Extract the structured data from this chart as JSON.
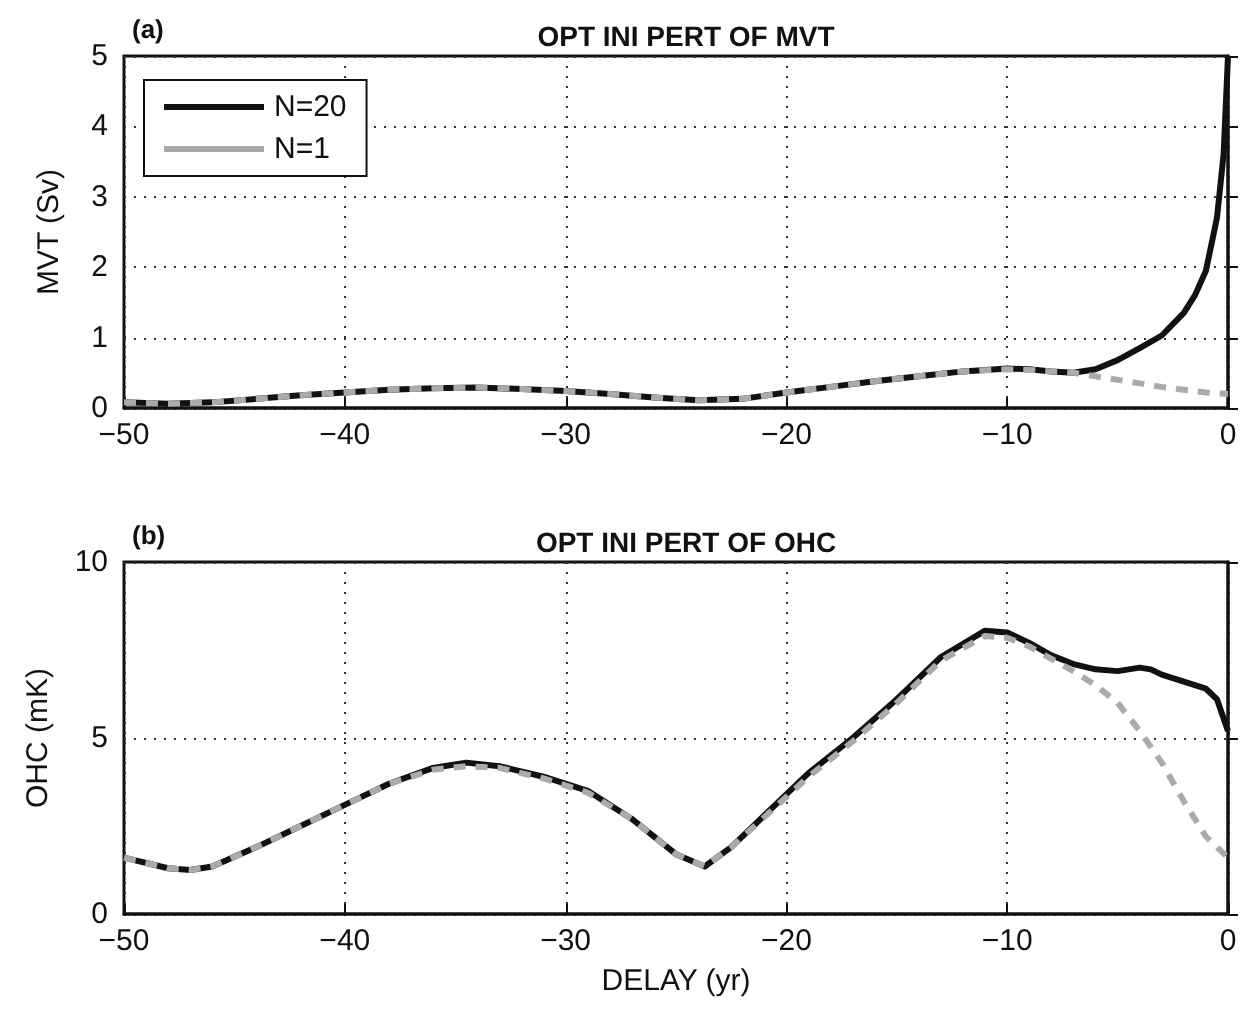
{
  "chart_data": [
    {
      "type": "line",
      "title": "OPT INI PERT OF MVT",
      "ylabel": "MVT (Sv)",
      "annotations": [
        "(a)"
      ],
      "xlim": [
        -50,
        0
      ],
      "xticks": [
        -50,
        -40,
        -30,
        -20,
        -10,
        0
      ],
      "ylim": [
        0,
        5
      ],
      "yticks": [
        0,
        1,
        2,
        3,
        4,
        5
      ],
      "grid": true,
      "legend": "top left",
      "marker": "none",
      "series": [
        {
          "name": "N=20",
          "color": "#111111",
          "line_style": "solid",
          "x": [
            -50,
            -48,
            -46,
            -44,
            -42,
            -40,
            -38,
            -36,
            -34,
            -32,
            -30,
            -28,
            -26,
            -24,
            -22,
            -20,
            -18,
            -16,
            -14,
            -12,
            -10,
            -9,
            -8,
            -7,
            -6,
            -5,
            -4,
            -3,
            -2,
            -1.5,
            -1,
            -0.5,
            -0.2,
            0
          ],
          "values": [
            0.08,
            0.06,
            0.08,
            0.13,
            0.18,
            0.22,
            0.26,
            0.28,
            0.29,
            0.27,
            0.24,
            0.2,
            0.15,
            0.11,
            0.13,
            0.22,
            0.3,
            0.38,
            0.45,
            0.52,
            0.56,
            0.55,
            0.52,
            0.5,
            0.55,
            0.68,
            0.85,
            1.03,
            1.35,
            1.6,
            1.95,
            2.7,
            3.6,
            5
          ]
        },
        {
          "name": "N=1",
          "color": "#aaaaaa",
          "line_style": "dashed",
          "x": [
            -50,
            -48,
            -46,
            -44,
            -42,
            -40,
            -38,
            -36,
            -34,
            -32,
            -30,
            -28,
            -26,
            -24,
            -22,
            -20,
            -18,
            -16,
            -14,
            -12,
            -10,
            -9,
            -8,
            -7,
            -6,
            -5,
            -4,
            -3,
            -2,
            -1,
            0
          ],
          "values": [
            0.08,
            0.06,
            0.08,
            0.13,
            0.18,
            0.22,
            0.26,
            0.28,
            0.29,
            0.27,
            0.24,
            0.2,
            0.15,
            0.11,
            0.13,
            0.22,
            0.3,
            0.38,
            0.45,
            0.52,
            0.55,
            0.54,
            0.52,
            0.5,
            0.45,
            0.4,
            0.35,
            0.3,
            0.26,
            0.22,
            0.2
          ]
        }
      ]
    },
    {
      "type": "line",
      "title": "OPT INI PERT OF OHC",
      "xlabel": "DELAY (yr)",
      "ylabel": "OHC (mK)",
      "annotations": [
        "(b)"
      ],
      "xlim": [
        -50,
        0
      ],
      "xticks": [
        -50,
        -40,
        -30,
        -20,
        -10,
        0
      ],
      "ylim": [
        0,
        10
      ],
      "yticks": [
        0,
        5,
        10
      ],
      "grid": true,
      "marker": "none",
      "series": [
        {
          "color": "#111111",
          "line_style": "solid",
          "x": [
            -50,
            -48,
            -47,
            -46,
            -44,
            -42,
            -40,
            -38,
            -36,
            -34.5,
            -33,
            -31,
            -29,
            -27,
            -25,
            -23.7,
            -22.5,
            -21,
            -19,
            -17,
            -15,
            -13,
            -11,
            -10,
            -9,
            -8,
            -7,
            -6,
            -5,
            -4,
            -3.5,
            -3,
            -2,
            -1,
            -0.5,
            0
          ],
          "values": [
            1.6,
            1.3,
            1.25,
            1.35,
            1.9,
            2.5,
            3.1,
            3.7,
            4.15,
            4.3,
            4.2,
            3.9,
            3.5,
            2.7,
            1.7,
            1.35,
            1.9,
            2.8,
            4,
            5,
            6.1,
            7.3,
            8.05,
            8,
            7.7,
            7.35,
            7.1,
            6.95,
            6.9,
            7,
            6.95,
            6.8,
            6.6,
            6.4,
            6.1,
            5.2
          ]
        },
        {
          "color": "#aaaaaa",
          "line_style": "dashed",
          "x": [
            -50,
            -48,
            -47,
            -46,
            -44,
            -42,
            -40,
            -38,
            -36,
            -34.5,
            -33,
            -31,
            -29,
            -27,
            -25,
            -23.7,
            -22.5,
            -21,
            -19,
            -17,
            -15,
            -13,
            -11,
            -10,
            -9,
            -8,
            -7,
            -6,
            -5,
            -4,
            -3,
            -2,
            -1,
            0
          ],
          "values": [
            1.6,
            1.3,
            1.25,
            1.35,
            1.9,
            2.5,
            3.1,
            3.7,
            4.1,
            4.2,
            4.15,
            3.85,
            3.45,
            2.7,
            1.7,
            1.35,
            1.9,
            2.75,
            3.9,
            4.9,
            6,
            7.2,
            7.9,
            7.85,
            7.6,
            7.25,
            6.9,
            6.5,
            6,
            5.2,
            4.3,
            3.2,
            2.2,
            1.6
          ]
        }
      ]
    }
  ]
}
